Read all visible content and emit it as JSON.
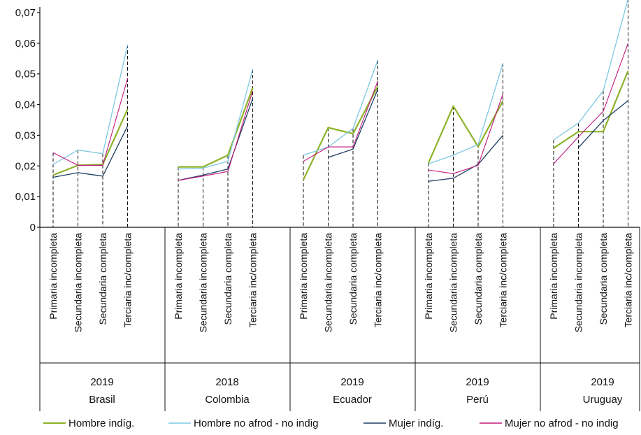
{
  "chart_data": {
    "type": "line",
    "title": "",
    "xlabel": "",
    "ylabel": "",
    "ylim": [
      0,
      0.07
    ],
    "yticks": [
      "0",
      "0,01",
      "0,02",
      "0,03",
      "0,04",
      "0,05",
      "0,06",
      "0,07"
    ],
    "categories": [
      "Primaria incompleta",
      "Secundaria incompleta",
      "Secundaria completa",
      "Terciaria inc/completa"
    ],
    "groups": [
      {
        "year": "2019",
        "country": "Brasil"
      },
      {
        "year": "2018",
        "country": "Colombia"
      },
      {
        "year": "2019",
        "country": "Ecuador"
      },
      {
        "year": "2019",
        "country": "Perú"
      },
      {
        "year": "2019",
        "country": "Uruguay"
      }
    ],
    "series": [
      {
        "name": "Hombre indíg.",
        "color": "#8db32a",
        "width": 2.2,
        "values": [
          [
            0.017,
            0.0202,
            0.0205,
            0.0385
          ],
          [
            0.0197,
            0.0197,
            0.0235,
            0.0455
          ],
          [
            0.0155,
            0.0325,
            0.0305,
            0.046
          ],
          [
            0.021,
            0.0395,
            0.0263,
            0.0412
          ],
          [
            0.0258,
            0.0312,
            0.0312,
            0.051
          ]
        ]
      },
      {
        "name": "Hombre no  afrod - no indig",
        "color": "#7ec8e3",
        "width": 1.3,
        "values": [
          [
            0.0205,
            0.0252,
            0.024,
            0.0595
          ],
          [
            0.019,
            0.0193,
            0.0215,
            0.0515
          ],
          [
            0.0235,
            0.0262,
            0.0322,
            0.0545
          ],
          [
            0.0207,
            0.0235,
            0.027,
            0.0535
          ],
          [
            0.0285,
            0.034,
            0.0445,
            0.0745
          ]
        ]
      },
      {
        "name": "Mujer indíg.",
        "color": "#1f3f63",
        "width": 1.3,
        "values": [
          [
            0.0163,
            0.0178,
            0.0167,
            0.033
          ],
          [
            0.0153,
            0.017,
            0.019,
            0.042
          ],
          [
            null,
            0.0228,
            0.0255,
            0.045
          ],
          [
            0.015,
            0.016,
            0.0205,
            0.03
          ],
          [
            null,
            0.026,
            0.0348,
            0.0413
          ]
        ]
      },
      {
        "name": "Mujer no afrod - no indig",
        "color": "#c2187e",
        "width": 1.1,
        "values": [
          [
            0.0243,
            0.0202,
            0.0202,
            0.0485
          ],
          [
            0.0153,
            0.0167,
            0.0182,
            0.0445
          ],
          [
            0.0215,
            0.0262,
            0.0262,
            0.0477
          ],
          [
            0.0187,
            0.0175,
            0.0202,
            0.0435
          ],
          [
            0.0207,
            0.0295,
            0.0378,
            0.06
          ]
        ]
      }
    ],
    "legend_position": "bottom",
    "grid": false
  }
}
